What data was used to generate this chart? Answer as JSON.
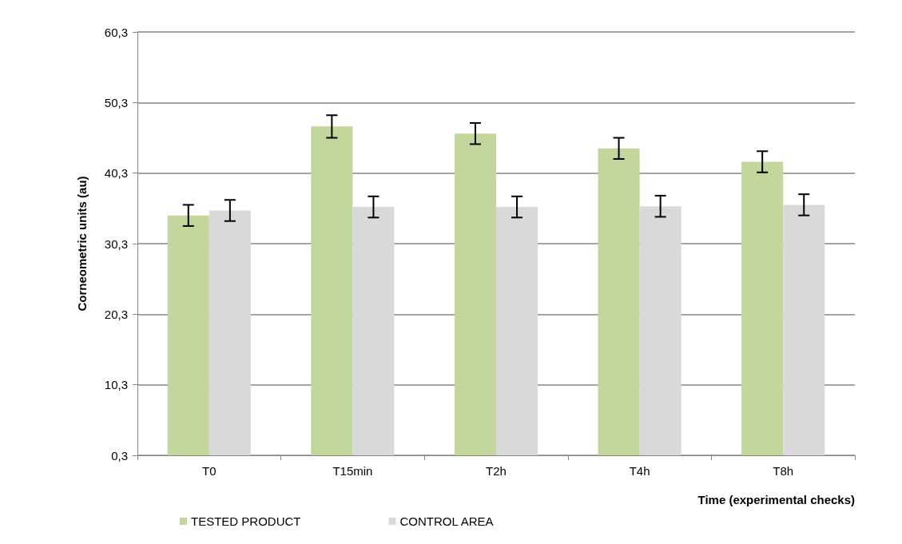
{
  "chart_data": {
    "type": "bar",
    "xlabel": "Time (experimental checks)",
    "ylabel": "Corneometric units (au)",
    "categories": [
      "T0",
      "T15min",
      "T2h",
      "T4h",
      "T8h"
    ],
    "series": [
      {
        "name": "TESTED PRODUCT",
        "color": "#c3d69b",
        "values": [
          34.3,
          46.9,
          45.9,
          43.8,
          41.9
        ],
        "errors": [
          1.5,
          1.6,
          1.5,
          1.5,
          1.5
        ]
      },
      {
        "name": "CONTROL AREA",
        "color": "#d9d9d9",
        "values": [
          35.0,
          35.5,
          35.5,
          35.6,
          35.8
        ],
        "errors": [
          1.5,
          1.5,
          1.5,
          1.5,
          1.5
        ]
      }
    ],
    "ylim": [
      0.3,
      60.3
    ],
    "yticks": [
      {
        "value": 0.3,
        "label": "0,3"
      },
      {
        "value": 10.3,
        "label": "10,3"
      },
      {
        "value": 20.3,
        "label": "20,3"
      },
      {
        "value": 30.3,
        "label": "30,3"
      },
      {
        "value": 40.3,
        "label": "40,3"
      },
      {
        "value": 50.3,
        "label": "50,3"
      },
      {
        "value": 60.3,
        "label": "60,3"
      }
    ],
    "grid": "y",
    "legend": "bottom left"
  }
}
